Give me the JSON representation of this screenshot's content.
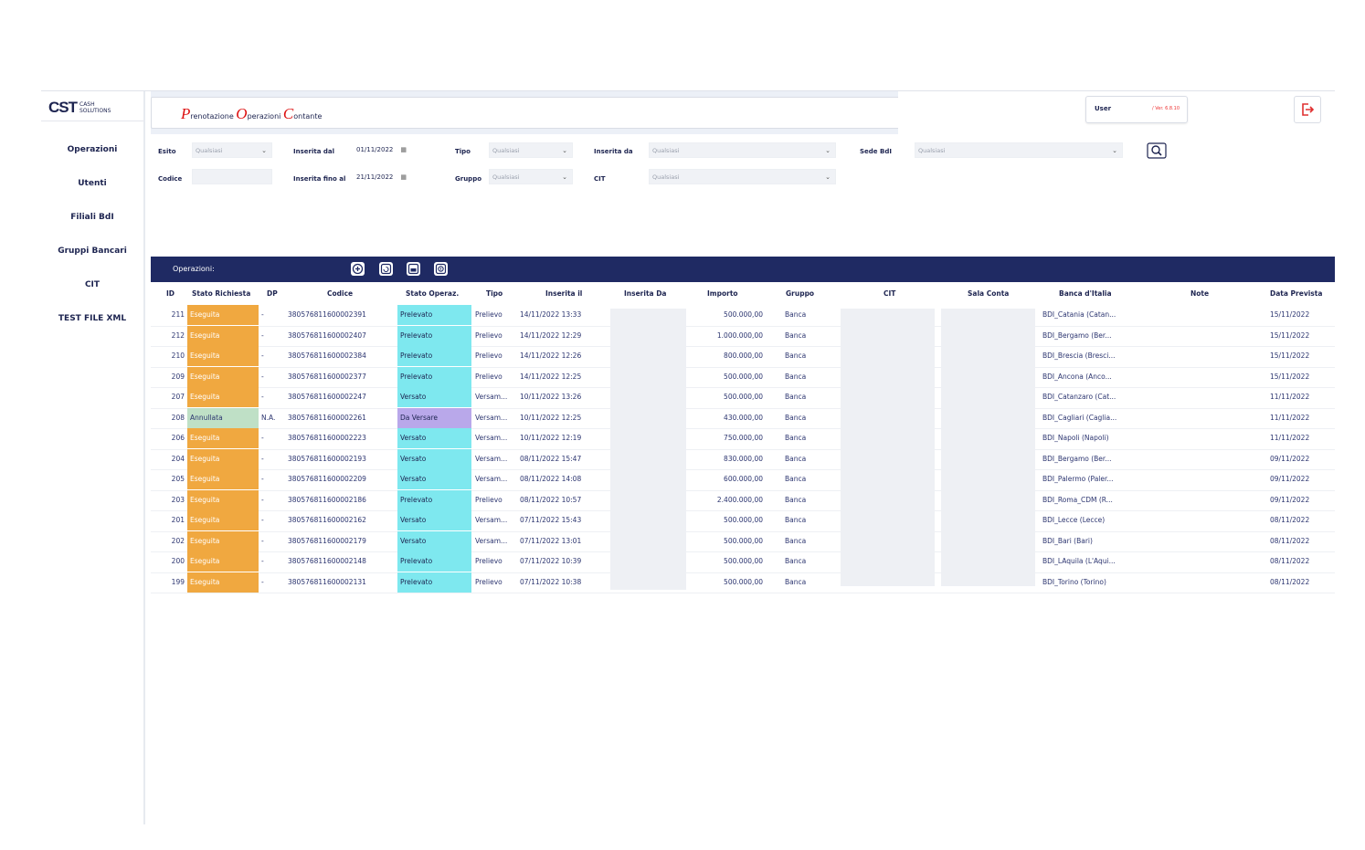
{
  "logo": {
    "brand": "CST",
    "sub1": "CASH",
    "sub2": "SOLUTIONS"
  },
  "sidebar": {
    "items": [
      {
        "label": "Operazioni"
      },
      {
        "label": "Utenti"
      },
      {
        "label": "Filiali BdI"
      },
      {
        "label": "Gruppi Bancari"
      },
      {
        "label": "CIT"
      },
      {
        "label": "TEST FILE XML"
      }
    ]
  },
  "header": {
    "title": [
      {
        "cap": "P",
        "rest": "renotazione "
      },
      {
        "cap": "O",
        "rest": "perazioni "
      },
      {
        "cap": "C",
        "rest": "ontante"
      }
    ],
    "user_label": "User",
    "version": "/ Ver. 6.8.10"
  },
  "filters": {
    "esito_label": "Esito",
    "esito_value": "Qualsiasi",
    "codice_label": "Codice",
    "codice_value": "",
    "inserita_dal_label": "Inserita dal",
    "inserita_dal_value": "01/11/2022",
    "inserita_fino_label": "Inserita fino al",
    "inserita_fino_value": "21/11/2022",
    "tipo_label": "Tipo",
    "tipo_value": "Qualsiasi",
    "gruppo_label": "Gruppo",
    "gruppo_value": "Qualsiasi",
    "inserita_da_label": "Inserita da",
    "inserita_da_value": "Qualsiasi",
    "cit_label": "CIT",
    "cit_value": "Qualsiasi",
    "sede_label": "Sede BdI",
    "sede_value": "Qualsiasi"
  },
  "operations": {
    "label": "Operazioni:"
  },
  "colors": {
    "eseguita": "#f0a840",
    "annullata": "#bfe0c6",
    "op": "#7ee8ef",
    "daversare": "#b9a8ea",
    "navy": "#1f2a63"
  },
  "table": {
    "headers": [
      "ID",
      "Stato Richiesta",
      "DP",
      "Codice",
      "Stato Operaz.",
      "Tipo",
      "Inserita il",
      "Inserita Da",
      "Importo",
      "Gruppo",
      "CIT",
      "Sala Conta",
      "Banca d'Italia",
      "Note",
      "Data Prevista"
    ],
    "rows": [
      {
        "id": "211",
        "stato": "Eseguita",
        "dp": "-",
        "codice": "380576811600002391",
        "op": "Prelevato",
        "tipo": "Prelievo",
        "ins": "14/11/2022 13:33",
        "importo": "500.000,00",
        "gruppo": "Banca",
        "bdi": "BDI_Catania (Catan...",
        "data": "15/11/2022"
      },
      {
        "id": "212",
        "stato": "Eseguita",
        "dp": "-",
        "codice": "380576811600002407",
        "op": "Prelevato",
        "tipo": "Prelievo",
        "ins": "14/11/2022 12:29",
        "importo": "1.000.000,00",
        "gruppo": "Banca",
        "bdi": "BDI_Bergamo (Ber...",
        "data": "15/11/2022"
      },
      {
        "id": "210",
        "stato": "Eseguita",
        "dp": "-",
        "codice": "380576811600002384",
        "op": "Prelevato",
        "tipo": "Prelievo",
        "ins": "14/11/2022 12:26",
        "importo": "800.000,00",
        "gruppo": "Banca",
        "bdi": "BDI_Brescia (Bresci...",
        "data": "15/11/2022"
      },
      {
        "id": "209",
        "stato": "Eseguita",
        "dp": "-",
        "codice": "380576811600002377",
        "op": "Prelevato",
        "tipo": "Prelievo",
        "ins": "14/11/2022 12:25",
        "importo": "500.000,00",
        "gruppo": "Banca",
        "bdi": "BDI_Ancona (Anco...",
        "data": "15/11/2022"
      },
      {
        "id": "207",
        "stato": "Eseguita",
        "dp": "-",
        "codice": "380576811600002247",
        "op": "Versato",
        "tipo": "Versam...",
        "ins": "10/11/2022 13:26",
        "importo": "500.000,00",
        "gruppo": "Banca",
        "bdi": "BDI_Catanzaro (Cat...",
        "data": "11/11/2022"
      },
      {
        "id": "208",
        "stato": "Annullata",
        "dp": "N.A.",
        "codice": "380576811600002261",
        "op": "Da Versare",
        "tipo": "Versam...",
        "ins": "10/11/2022 12:25",
        "importo": "430.000,00",
        "gruppo": "Banca",
        "bdi": "BDI_Cagliari (Caglia...",
        "data": "11/11/2022"
      },
      {
        "id": "206",
        "stato": "Eseguita",
        "dp": "-",
        "codice": "380576811600002223",
        "op": "Versato",
        "tipo": "Versam...",
        "ins": "10/11/2022 12:19",
        "importo": "750.000,00",
        "gruppo": "Banca",
        "bdi": "BDI_Napoli (Napoli)",
        "data": "11/11/2022"
      },
      {
        "id": "204",
        "stato": "Eseguita",
        "dp": "-",
        "codice": "380576811600002193",
        "op": "Versato",
        "tipo": "Versam...",
        "ins": "08/11/2022 15:47",
        "importo": "830.000,00",
        "gruppo": "Banca",
        "bdi": "BDI_Bergamo (Ber...",
        "data": "09/11/2022"
      },
      {
        "id": "205",
        "stato": "Eseguita",
        "dp": "-",
        "codice": "380576811600002209",
        "op": "Versato",
        "tipo": "Versam...",
        "ins": "08/11/2022 14:08",
        "importo": "600.000,00",
        "gruppo": "Banca",
        "bdi": "BDI_Palermo (Paler...",
        "data": "09/11/2022"
      },
      {
        "id": "203",
        "stato": "Eseguita",
        "dp": "-",
        "codice": "380576811600002186",
        "op": "Prelevato",
        "tipo": "Prelievo",
        "ins": "08/11/2022 10:57",
        "importo": "2.400.000,00",
        "gruppo": "Banca",
        "bdi": "BDI_Roma_CDM (R...",
        "data": "09/11/2022"
      },
      {
        "id": "201",
        "stato": "Eseguita",
        "dp": "-",
        "codice": "380576811600002162",
        "op": "Versato",
        "tipo": "Versam...",
        "ins": "07/11/2022 15:43",
        "importo": "500.000,00",
        "gruppo": "Banca",
        "bdi": "BDI_Lecce (Lecce)",
        "data": "08/11/2022"
      },
      {
        "id": "202",
        "stato": "Eseguita",
        "dp": "-",
        "codice": "380576811600002179",
        "op": "Versato",
        "tipo": "Versam...",
        "ins": "07/11/2022 13:01",
        "importo": "500.000,00",
        "gruppo": "Banca",
        "bdi": "BDI_Bari (Bari)",
        "data": "08/11/2022"
      },
      {
        "id": "200",
        "stato": "Eseguita",
        "dp": "-",
        "codice": "380576811600002148",
        "op": "Prelevato",
        "tipo": "Prelievo",
        "ins": "07/11/2022 10:39",
        "importo": "500.000,00",
        "gruppo": "Banca",
        "bdi": "BDI_LAquila (L'Aqui...",
        "data": "08/11/2022"
      },
      {
        "id": "199",
        "stato": "Eseguita",
        "dp": "-",
        "codice": "380576811600002131",
        "op": "Prelevato",
        "tipo": "Prelievo",
        "ins": "07/11/2022 10:38",
        "importo": "500.000,00",
        "gruppo": "Banca",
        "bdi": "BDI_Torino (Torino)",
        "data": "08/11/2022"
      }
    ]
  }
}
